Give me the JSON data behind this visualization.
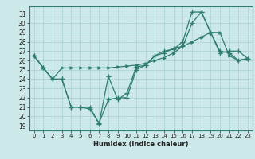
{
  "xlabel": "Humidex (Indice chaleur)",
  "ylabel": "",
  "background_color": "#cce8e8",
  "grid_color": "#aed4d4",
  "line_color": "#2e7d6e",
  "xlim": [
    -0.5,
    23.5
  ],
  "ylim": [
    18.5,
    31.8
  ],
  "yticks": [
    19,
    20,
    21,
    22,
    23,
    24,
    25,
    26,
    27,
    28,
    29,
    30,
    31
  ],
  "xticks": [
    0,
    1,
    2,
    3,
    4,
    5,
    6,
    7,
    8,
    9,
    10,
    11,
    12,
    13,
    14,
    15,
    16,
    17,
    18,
    19,
    20,
    21,
    22,
    23
  ],
  "line1_x": [
    0,
    1,
    2,
    3,
    4,
    5,
    6,
    7,
    8,
    9,
    10,
    11,
    12,
    13,
    14,
    15,
    16,
    17,
    18,
    19,
    20,
    21,
    22,
    23
  ],
  "line1_y": [
    26.5,
    25.2,
    24.0,
    25.2,
    25.2,
    25.2,
    25.2,
    25.2,
    25.2,
    25.3,
    25.4,
    25.5,
    25.7,
    26.0,
    26.3,
    26.8,
    27.5,
    28.0,
    28.5,
    29.0,
    29.0,
    26.5,
    26.0,
    26.2
  ],
  "line2_x": [
    0,
    1,
    2,
    3,
    4,
    5,
    6,
    7,
    8,
    9,
    10,
    11,
    12,
    13,
    14,
    15,
    16,
    17,
    18,
    19,
    20,
    21,
    22,
    23
  ],
  "line2_y": [
    26.5,
    25.2,
    24.0,
    24.0,
    21.0,
    21.0,
    21.0,
    19.2,
    24.3,
    21.8,
    22.5,
    25.3,
    25.5,
    26.5,
    27.0,
    27.2,
    28.0,
    31.2,
    31.2,
    29.0,
    26.8,
    27.0,
    27.0,
    26.2
  ],
  "line3_x": [
    0,
    1,
    2,
    3,
    4,
    5,
    6,
    7,
    8,
    9,
    10,
    11,
    12,
    13,
    14,
    15,
    16,
    17,
    18,
    19,
    20,
    21,
    22,
    23
  ],
  "line3_y": [
    26.5,
    25.2,
    24.0,
    24.0,
    21.0,
    21.0,
    20.8,
    19.3,
    21.8,
    22.0,
    22.0,
    25.0,
    25.5,
    26.5,
    26.8,
    27.3,
    27.5,
    30.0,
    31.2,
    29.0,
    27.0,
    26.8,
    26.0,
    26.2
  ]
}
